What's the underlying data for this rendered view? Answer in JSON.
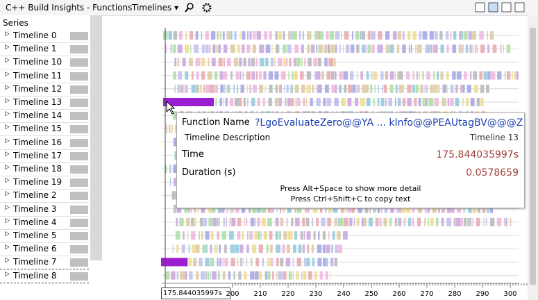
{
  "window": {
    "title": "C++ Build Insights - Functions",
    "view": "Timelines"
  },
  "series_panel": {
    "header": "Series",
    "rows": [
      "Timeline 0",
      "Timeline 1",
      "Timeline 10",
      "Timeline 11",
      "Timeline 12",
      "Timeline 13",
      "Timeline 14",
      "Timeline 15",
      "Timeline 16",
      "Timeline 17",
      "Timeline 18",
      "Timeline 19",
      "Timeline 2",
      "Timeline 3",
      "Timeline 4",
      "Timeline 5",
      "Timeline 6",
      "Timeline 7",
      "Timeline 8"
    ]
  },
  "tooltip": {
    "fields": [
      {
        "label": "Function Name",
        "value": "?LgoEvaluateZero@@YA ... kInfo@@PEAUtagBV@@@Z"
      },
      {
        "label": "Timeline Description",
        "value": "Timeline 13"
      },
      {
        "label": "Time",
        "value": "175.844035997s"
      },
      {
        "label": "Duration (s)",
        "value": "0.0578659"
      }
    ],
    "hints": [
      "Press Alt+Space to show more detail",
      "Press Ctrl+Shift+C to copy text"
    ]
  },
  "axis": {
    "ticks": [
      200,
      210,
      220,
      230,
      240,
      250,
      260,
      270,
      280,
      290,
      300
    ],
    "cursor_label": "175.844035997s"
  }
}
